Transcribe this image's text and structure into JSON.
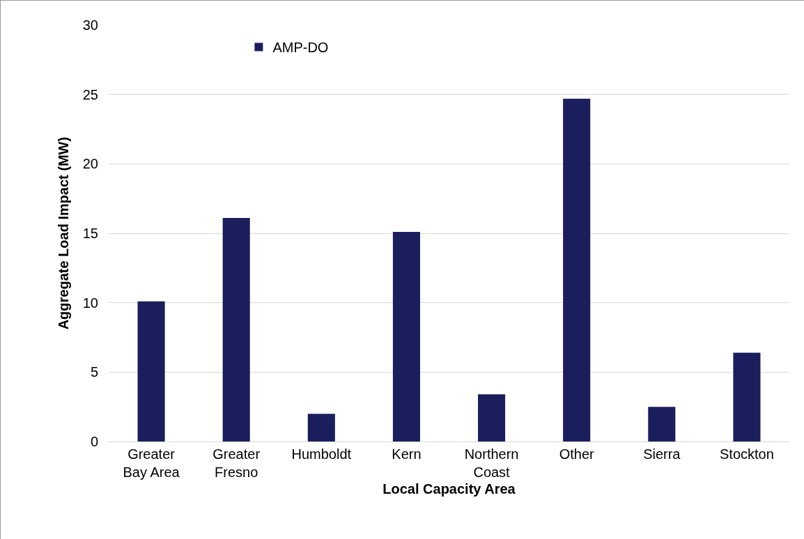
{
  "chart_data": {
    "type": "bar",
    "xlabel": "Local Capacity Area",
    "ylabel": "Aggregate Load Impact (MW)",
    "categories": [
      "Greater Bay Area",
      "Greater Fresno",
      "Humboldt",
      "Kern",
      "Northern Coast",
      "Other",
      "Sierra",
      "Stockton"
    ],
    "series": [
      {
        "name": "AMP-DO",
        "color": "#1b1e5c",
        "values": [
          10.1,
          16.1,
          2.0,
          15.1,
          3.4,
          24.7,
          2.5,
          6.4
        ]
      }
    ],
    "ylim": [
      0,
      30
    ],
    "yticks": [
      0,
      5,
      10,
      15,
      20,
      25,
      30
    ],
    "grid": "y",
    "legend": "top left"
  }
}
